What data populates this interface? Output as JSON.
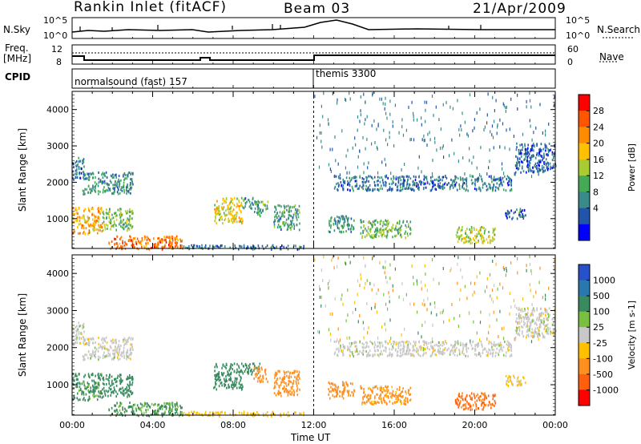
{
  "header": {
    "station": "Rankin Inlet (fitACF)",
    "beam": "Beam 03",
    "date": "21/Apr/2009"
  },
  "strips": {
    "nsky_label": "N.Sky",
    "nsearch_label": "N.Search",
    "nsky_ticks": [
      "10^5",
      "10^0"
    ],
    "nsearch_ticks": [
      "10^5",
      "10^0"
    ],
    "freq_label_1": "Freq.",
    "freq_label_2": "[MHz]",
    "freq_ticks": [
      "12",
      "8"
    ],
    "nave_label": "Nave",
    "nave_ticks": [
      "60",
      "0"
    ],
    "cpid_label": "CPID",
    "cpid_modes": [
      {
        "name": "normalsound (fast) 157",
        "start_hour": 0
      },
      {
        "name": "themis 3300",
        "start_hour": 12
      }
    ]
  },
  "chart_data": [
    {
      "type": "heatmap",
      "name": "power",
      "ylabel": "Slant Range [km]",
      "colorbar_label": "Power [dB]",
      "colorbar_ticks": [
        "28",
        "24",
        "20",
        "16",
        "12",
        "8",
        "4"
      ],
      "colorbar_colors": [
        "#ff0000",
        "#ff5500",
        "#ff8c00",
        "#ffc000",
        "#aacc33",
        "#44aa55",
        "#3a8a8a",
        "#2255aa",
        "#0000ff"
      ],
      "xlim": [
        0,
        24
      ],
      "ylim": [
        180,
        4500
      ],
      "y_ticks": [
        1000,
        2000,
        3000,
        4000
      ],
      "x_ticks": [
        "00:00",
        "04:00",
        "08:00",
        "12:00",
        "16:00",
        "20:00",
        "00:00"
      ],
      "regions": [
        {
          "t0": 0.0,
          "t1": 0.6,
          "r0": 2100,
          "r1": 2700,
          "v": 6
        },
        {
          "t0": 0.5,
          "t1": 3.0,
          "r0": 1700,
          "r1": 2300,
          "v": 9
        },
        {
          "t0": 0.0,
          "t1": 1.5,
          "r0": 600,
          "r1": 1350,
          "v": 22
        },
        {
          "t0": 1.5,
          "t1": 3.0,
          "r0": 700,
          "r1": 1300,
          "v": 14
        },
        {
          "t0": 1.8,
          "t1": 5.5,
          "r0": 180,
          "r1": 550,
          "v": 26
        },
        {
          "t0": 5.5,
          "t1": 11.5,
          "r0": 180,
          "r1": 300,
          "v": 6
        },
        {
          "t0": 7.0,
          "t1": 8.5,
          "r0": 900,
          "r1": 1600,
          "v": 18
        },
        {
          "t0": 8.5,
          "t1": 9.3,
          "r0": 1300,
          "r1": 1600,
          "v": 9
        },
        {
          "t0": 9.0,
          "t1": 9.7,
          "r0": 1100,
          "r1": 1500,
          "v": 11
        },
        {
          "t0": 10.0,
          "t1": 11.3,
          "r0": 700,
          "r1": 1400,
          "v": 10
        },
        {
          "t0": 13.0,
          "t1": 21.8,
          "r0": 1800,
          "r1": 2200,
          "v": 6
        },
        {
          "t0": 12.7,
          "t1": 14.0,
          "r0": 650,
          "r1": 1100,
          "v": 9
        },
        {
          "t0": 14.3,
          "t1": 16.8,
          "r0": 500,
          "r1": 1000,
          "v": 13
        },
        {
          "t0": 19.0,
          "t1": 21.0,
          "r0": 350,
          "r1": 800,
          "v": 16
        },
        {
          "t0": 21.5,
          "t1": 22.5,
          "r0": 1000,
          "r1": 1300,
          "v": 6
        },
        {
          "t0": 22.0,
          "t1": 24.0,
          "r0": 2300,
          "r1": 3100,
          "v": 5
        }
      ]
    },
    {
      "type": "heatmap",
      "name": "velocity",
      "ylabel": "Slant Range [km]",
      "xlabel": "Time UT",
      "colorbar_label": "Velocity [m s-1]",
      "colorbar_ticks": [
        "1000",
        "500",
        "100",
        "25",
        "-25",
        "-100",
        "-500",
        "-1000"
      ],
      "colorbar_colors": [
        "#2850c8",
        "#2a78b0",
        "#3a8a60",
        "#7ac040",
        "#c8c8c8",
        "#ffc000",
        "#ff9020",
        "#ff6010",
        "#ff0000"
      ],
      "xlim": [
        0,
        24
      ],
      "ylim": [
        180,
        4500
      ],
      "y_ticks": [
        1000,
        2000,
        3000,
        4000
      ],
      "x_ticks": [
        "00:00",
        "04:00",
        "08:00",
        "12:00",
        "16:00",
        "20:00",
        "00:00"
      ],
      "regions": [
        {
          "t0": 0.0,
          "t1": 0.6,
          "r0": 2100,
          "r1": 2700,
          "v": 0
        },
        {
          "t0": 0.5,
          "t1": 3.0,
          "r0": 1700,
          "r1": 2300,
          "v": 0
        },
        {
          "t0": 0.0,
          "t1": 1.5,
          "r0": 600,
          "r1": 1350,
          "v": 150
        },
        {
          "t0": 1.5,
          "t1": 3.0,
          "r0": 700,
          "r1": 1300,
          "v": 200
        },
        {
          "t0": 1.8,
          "t1": 5.5,
          "r0": 180,
          "r1": 550,
          "v": 120
        },
        {
          "t0": 5.5,
          "t1": 11.5,
          "r0": 180,
          "r1": 300,
          "v": -50
        },
        {
          "t0": 7.0,
          "t1": 8.5,
          "r0": 900,
          "r1": 1600,
          "v": 300
        },
        {
          "t0": 8.5,
          "t1": 9.3,
          "r0": 1300,
          "r1": 1600,
          "v": 200
        },
        {
          "t0": 9.0,
          "t1": 9.7,
          "r0": 1100,
          "r1": 1500,
          "v": -200
        },
        {
          "t0": 10.0,
          "t1": 11.3,
          "r0": 700,
          "r1": 1400,
          "v": -300
        },
        {
          "t0": 13.0,
          "t1": 21.8,
          "r0": 1800,
          "r1": 2200,
          "v": 0
        },
        {
          "t0": 12.7,
          "t1": 14.0,
          "r0": 650,
          "r1": 1100,
          "v": -200
        },
        {
          "t0": 14.3,
          "t1": 16.8,
          "r0": 500,
          "r1": 1000,
          "v": -150
        },
        {
          "t0": 19.0,
          "t1": 21.0,
          "r0": 350,
          "r1": 800,
          "v": -600
        },
        {
          "t0": 21.5,
          "t1": 22.5,
          "r0": 1000,
          "r1": 1300,
          "v": -40
        },
        {
          "t0": 22.0,
          "t1": 24.0,
          "r0": 2300,
          "r1": 3100,
          "v": 0
        }
      ]
    }
  ]
}
